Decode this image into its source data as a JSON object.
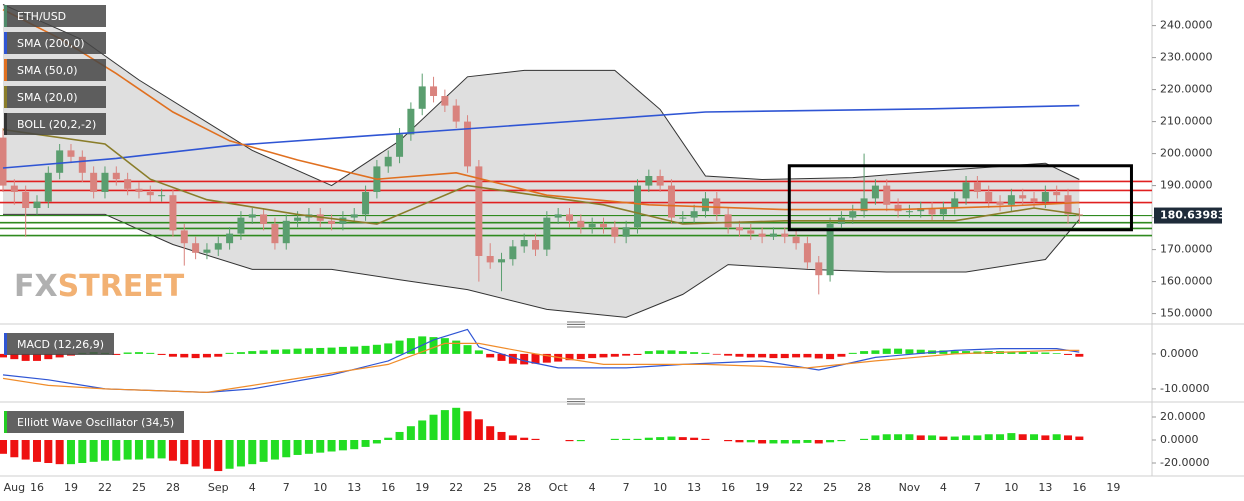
{
  "chart_data": [
    {
      "type": "candlestick",
      "symbol": "ETH/USD",
      "symbol_color": "#4f8a6a",
      "categories": [
        null,
        "Aug",
        null,
        "16",
        null,
        null,
        "19",
        null,
        null,
        "22",
        null,
        null,
        "25",
        null,
        null,
        "28",
        null,
        null,
        null,
        "Sep",
        null,
        null,
        "4",
        null,
        null,
        "7",
        null,
        null,
        "10",
        null,
        null,
        "13",
        null,
        null,
        "16",
        null,
        null,
        "19",
        null,
        null,
        "22",
        null,
        null,
        "25",
        null,
        null,
        "28",
        null,
        null,
        "Oct",
        null,
        null,
        "4",
        null,
        null,
        "7",
        null,
        null,
        "10",
        null,
        null,
        "13",
        null,
        null,
        "16",
        null,
        null,
        "19",
        null,
        null,
        "22",
        null,
        null,
        "25",
        null,
        null,
        "28",
        null,
        null,
        null,
        "Nov",
        null,
        null,
        "4",
        null,
        null,
        "7",
        null,
        null,
        "10",
        null,
        null,
        "13",
        null,
        null,
        "16",
        null,
        null,
        "19"
      ],
      "ohlc": [
        [
          205,
          208,
          188,
          190
        ],
        [
          190,
          192,
          184,
          188
        ],
        [
          188,
          190,
          174,
          183
        ],
        [
          183,
          187,
          181,
          185
        ],
        [
          185,
          196,
          183,
          194
        ],
        [
          194,
          203,
          192,
          201
        ],
        [
          201,
          203,
          197,
          199
        ],
        [
          199,
          201,
          191,
          194
        ],
        [
          194,
          196,
          186,
          188
        ],
        [
          188,
          196,
          186,
          194
        ],
        [
          194,
          196,
          190,
          192
        ],
        [
          192,
          194,
          187,
          189
        ],
        [
          189,
          191,
          186,
          188
        ],
        [
          188,
          190,
          185,
          187
        ],
        [
          187,
          189,
          185,
          187
        ],
        [
          187,
          189,
          174,
          176
        ],
        [
          176,
          178,
          165,
          172
        ],
        [
          172,
          174,
          167,
          169
        ],
        [
          169,
          172,
          167,
          170
        ],
        [
          170,
          174,
          168,
          172
        ],
        [
          172,
          177,
          170,
          175
        ],
        [
          175,
          182,
          173,
          180
        ],
        [
          180,
          183,
          178,
          181
        ],
        [
          181,
          183,
          176,
          178
        ],
        [
          178,
          180,
          170,
          172
        ],
        [
          172,
          181,
          170,
          179
        ],
        [
          179,
          182,
          177,
          180
        ],
        [
          180,
          183,
          178,
          181
        ],
        [
          181,
          183,
          177,
          179
        ],
        [
          179,
          181,
          176,
          178
        ],
        [
          178,
          182,
          176,
          180
        ],
        [
          180,
          183,
          179,
          181
        ],
        [
          181,
          190,
          179,
          188
        ],
        [
          188,
          198,
          186,
          196
        ],
        [
          196,
          201,
          194,
          199
        ],
        [
          199,
          208,
          197,
          206
        ],
        [
          206,
          216,
          204,
          214
        ],
        [
          214,
          225,
          212,
          221
        ],
        [
          221,
          224,
          216,
          218
        ],
        [
          218,
          220,
          213,
          215
        ],
        [
          215,
          217,
          208,
          210
        ],
        [
          210,
          212,
          194,
          196
        ],
        [
          196,
          198,
          160,
          168
        ],
        [
          168,
          172,
          164,
          166
        ],
        [
          166,
          169,
          157,
          167
        ],
        [
          167,
          173,
          165,
          171
        ],
        [
          171,
          175,
          169,
          173
        ],
        [
          173,
          175,
          168,
          170
        ],
        [
          170,
          182,
          168,
          180
        ],
        [
          180,
          183,
          178,
          181
        ],
        [
          181,
          183,
          177,
          179
        ],
        [
          179,
          181,
          175,
          177
        ],
        [
          177,
          180,
          175,
          178
        ],
        [
          178,
          180,
          175,
          177
        ],
        [
          177,
          179,
          172,
          174
        ],
        [
          174,
          179,
          172,
          177
        ],
        [
          177,
          192,
          175,
          190
        ],
        [
          190,
          195,
          188,
          193
        ],
        [
          193,
          195,
          188,
          190
        ],
        [
          190,
          192,
          178,
          180
        ],
        [
          180,
          182,
          178,
          180
        ],
        [
          180,
          184,
          178,
          182
        ],
        [
          182,
          188,
          180,
          186
        ],
        [
          186,
          188,
          179,
          181
        ],
        [
          181,
          183,
          175,
          177
        ],
        [
          177,
          179,
          174,
          176
        ],
        [
          176,
          178,
          173,
          175
        ],
        [
          175,
          177,
          172,
          174
        ],
        [
          174,
          177,
          173,
          175
        ],
        [
          175,
          177,
          172,
          174
        ],
        [
          174,
          176,
          170,
          172
        ],
        [
          172,
          174,
          164,
          166
        ],
        [
          166,
          168,
          156,
          162
        ],
        [
          162,
          180,
          160,
          178
        ],
        [
          178,
          182,
          176,
          180
        ],
        [
          180,
          184,
          178,
          182
        ],
        [
          182,
          200,
          180,
          186
        ],
        [
          186,
          192,
          184,
          190
        ],
        [
          190,
          192,
          182,
          184
        ],
        [
          184,
          186,
          180,
          182
        ],
        [
          182,
          184,
          180,
          182
        ],
        [
          182,
          185,
          180,
          183
        ],
        [
          183,
          185,
          179,
          181
        ],
        [
          181,
          185,
          179,
          183
        ],
        [
          183,
          188,
          181,
          186
        ],
        [
          186,
          193,
          184,
          191
        ],
        [
          191,
          193,
          186,
          188
        ],
        [
          188,
          190,
          183,
          185
        ],
        [
          185,
          187,
          182,
          184
        ],
        [
          184,
          189,
          182,
          187
        ],
        [
          187,
          189,
          184,
          186
        ],
        [
          186,
          188,
          183,
          185
        ],
        [
          185,
          190,
          183,
          188
        ],
        [
          188,
          190,
          185,
          187
        ],
        [
          187,
          189,
          178,
          181
        ],
        [
          181,
          183,
          178,
          180.64
        ],
        null,
        null,
        null
      ],
      "up_color": "#5a9e6f",
      "down_color": "#d9837e",
      "ylim": [
        148,
        248
      ],
      "yticks": [
        {
          "value": 150,
          "label": "150.0000"
        },
        {
          "value": 160,
          "label": "160.0000"
        },
        {
          "value": 170,
          "label": "170.0000"
        },
        {
          "value": 180,
          "label": "180.0000"
        },
        {
          "value": 190,
          "label": "190.0000"
        },
        {
          "value": 200,
          "label": "200.0000"
        },
        {
          "value": 210,
          "label": "210.0000"
        },
        {
          "value": 220,
          "label": "220.0000"
        },
        {
          "value": 230,
          "label": "230.0000"
        },
        {
          "value": 240,
          "label": "240.0000"
        }
      ],
      "last_price": 180.63983,
      "overlays": [
        {
          "name": "SMA (200,0)",
          "color": "#2f55d4",
          "x": [
            0,
            10,
            20,
            30,
            42,
            52,
            62,
            72,
            82,
            95
          ],
          "values": [
            195.5,
            198.5,
            202.5,
            205,
            208,
            210.5,
            213,
            213.5,
            214,
            215
          ]
        },
        {
          "name": "SMA (50,0)",
          "color": "#e07020",
          "x": [
            0,
            5,
            10,
            15,
            20,
            26,
            33,
            40,
            48,
            57,
            69,
            79,
            88,
            95
          ],
          "values": [
            245,
            236,
            225,
            213,
            204,
            198,
            192,
            194,
            187,
            184,
            182.5,
            182.5,
            183.5,
            184.7
          ]
        },
        {
          "name": "SMA (20,0)",
          "color": "#8a7d2a",
          "x": [
            0,
            9,
            13,
            18,
            26,
            33,
            37,
            41,
            47,
            53,
            60,
            69,
            77,
            84,
            91,
            95
          ],
          "values": [
            207.5,
            203,
            192,
            185.6,
            181,
            178,
            184,
            190,
            187,
            184,
            178,
            179,
            179,
            179,
            183,
            181
          ]
        }
      ],
      "bollinger": {
        "name": "BOLL (20,2,-2)",
        "color": "#333333",
        "upper": {
          "x": [
            0,
            7,
            12,
            22,
            29,
            35,
            41,
            46,
            54,
            58,
            62,
            67,
            75,
            84,
            92,
            95
          ],
          "values": [
            246.6,
            235.6,
            223,
            201,
            190,
            204,
            224,
            226,
            226,
            213.8,
            193,
            191.9,
            192.5,
            195,
            197,
            191.9
          ]
        },
        "lower": {
          "x": [
            0,
            9,
            15,
            22,
            29,
            35,
            41,
            48,
            55,
            60,
            64,
            71,
            78,
            85,
            92,
            95
          ],
          "values": [
            181,
            181,
            171.6,
            163.8,
            163.8,
            160.6,
            157.5,
            151.3,
            148.8,
            156,
            165.3,
            163.8,
            163,
            163,
            166.9,
            179.4
          ]
        }
      },
      "resistance_levels": [
        191.3,
        188.5,
        184.7
      ],
      "resistance_color": "#e02020",
      "support_levels": [
        178.4,
        176.6,
        174.4
      ],
      "support_color": "#2f8a1f",
      "highlight_box": {
        "x": [
          69.4,
          99.6
        ],
        "y": [
          176.2,
          196.2
        ]
      },
      "watermark": [
        "FX",
        "STREET"
      ]
    },
    {
      "type": "macd",
      "name": "MACD (12,26,9)",
      "name_color": "#2f55d4",
      "histogram": [
        -1,
        -1.5,
        -2,
        -2,
        -1.5,
        -1,
        -0.5,
        0.3,
        0.5,
        0.3,
        -0.3,
        0.4,
        0.5,
        0.3,
        -0.3,
        -0.8,
        -1,
        -1.2,
        -1,
        -0.8,
        0.3,
        0.5,
        0.8,
        1,
        1.2,
        1.3,
        1.5,
        1.6,
        1.7,
        1.8,
        2,
        2.1,
        2.3,
        2.6,
        3,
        3.8,
        4.5,
        5,
        4.8,
        4.5,
        3.8,
        2.5,
        1,
        -1,
        -2,
        -2.8,
        -3,
        -2.8,
        -2.5,
        -2.2,
        -1.8,
        -1.5,
        -1.2,
        -1,
        -0.8,
        -0.5,
        -0.3,
        0.8,
        1,
        1,
        0.8,
        0.5,
        0.3,
        -0.2,
        -0.5,
        -0.8,
        -1,
        -1,
        -1.2,
        -1.2,
        -1,
        -1,
        -1.3,
        -1.5,
        -0.8,
        0.3,
        0.8,
        1,
        1.5,
        1.5,
        1.3,
        1.2,
        1,
        1,
        0.8,
        0.8,
        0.7,
        0.8,
        0.8,
        0.7,
        0.6,
        0.5,
        0.4,
        0.2,
        -0.3,
        -0.8,
        null,
        null,
        null
      ],
      "up_color": "#22dd22",
      "down_color": "#ee1111",
      "macd": {
        "color": "#2f55d4",
        "x": [
          0,
          4,
          9,
          18,
          22,
          29,
          34,
          38,
          41,
          42,
          46,
          49,
          55,
          60,
          67,
          72,
          77,
          84,
          88,
          93,
          95
        ],
        "values": [
          -6,
          -7.4,
          -10,
          -11,
          -10,
          -6,
          -2,
          4,
          7,
          2,
          -2,
          -4,
          -4,
          -3,
          -2,
          -4.6,
          -1,
          1,
          1.5,
          1.5,
          0.5
        ]
      },
      "signal": {
        "color": "#f08c2a",
        "x": [
          0,
          4,
          9,
          18,
          26,
          34,
          39,
          42,
          47,
          53,
          62,
          71,
          77,
          84,
          93,
          95
        ],
        "values": [
          -7,
          -9,
          -10,
          -11,
          -7,
          -3,
          3,
          3,
          0,
          -3,
          -3,
          -4,
          -2,
          0,
          1,
          1
        ]
      },
      "ylim": [
        -12.6,
        7.4
      ],
      "yticks": [
        {
          "value": 0,
          "label": "0.0000"
        },
        {
          "value": -10,
          "label": "-10.0000"
        }
      ]
    },
    {
      "type": "ewo",
      "name": "Elliott Wave Oscillator (34,5)",
      "name_color": "#22cc22",
      "values": [
        -12,
        -15,
        -17,
        -19,
        -20,
        -21,
        -21,
        -20,
        -19,
        -18,
        -18,
        -17,
        -17,
        -16,
        -16,
        -18,
        -21,
        -23,
        -25,
        -27,
        -25,
        -23,
        -21,
        -19,
        -17,
        -15,
        -13,
        -12,
        -11,
        -10,
        -9,
        -8,
        -6,
        -3,
        2,
        7,
        12,
        17,
        22,
        26,
        28,
        25,
        18,
        12,
        7,
        4,
        2,
        1,
        0,
        0,
        -1,
        -1,
        0,
        0,
        1,
        1,
        1,
        2,
        2.5,
        3,
        2.5,
        2,
        1,
        0,
        -1,
        -2,
        -2,
        -3,
        -3,
        -3,
        -3,
        -2.5,
        -3,
        -2,
        -1,
        0,
        1,
        4,
        5,
        5,
        5,
        4,
        4,
        3,
        3,
        4,
        4,
        5,
        5,
        6,
        5,
        5,
        4,
        5,
        4,
        3,
        null,
        null,
        null
      ],
      "up_color": "#22dd22",
      "down_color": "#ee1111",
      "ylim": [
        -31.3,
        28.7
      ],
      "yticks": [
        {
          "value": 20,
          "label": "20.0000"
        },
        {
          "value": 0,
          "label": "0.0000"
        },
        {
          "value": -20,
          "label": "-20.0000"
        }
      ]
    }
  ]
}
